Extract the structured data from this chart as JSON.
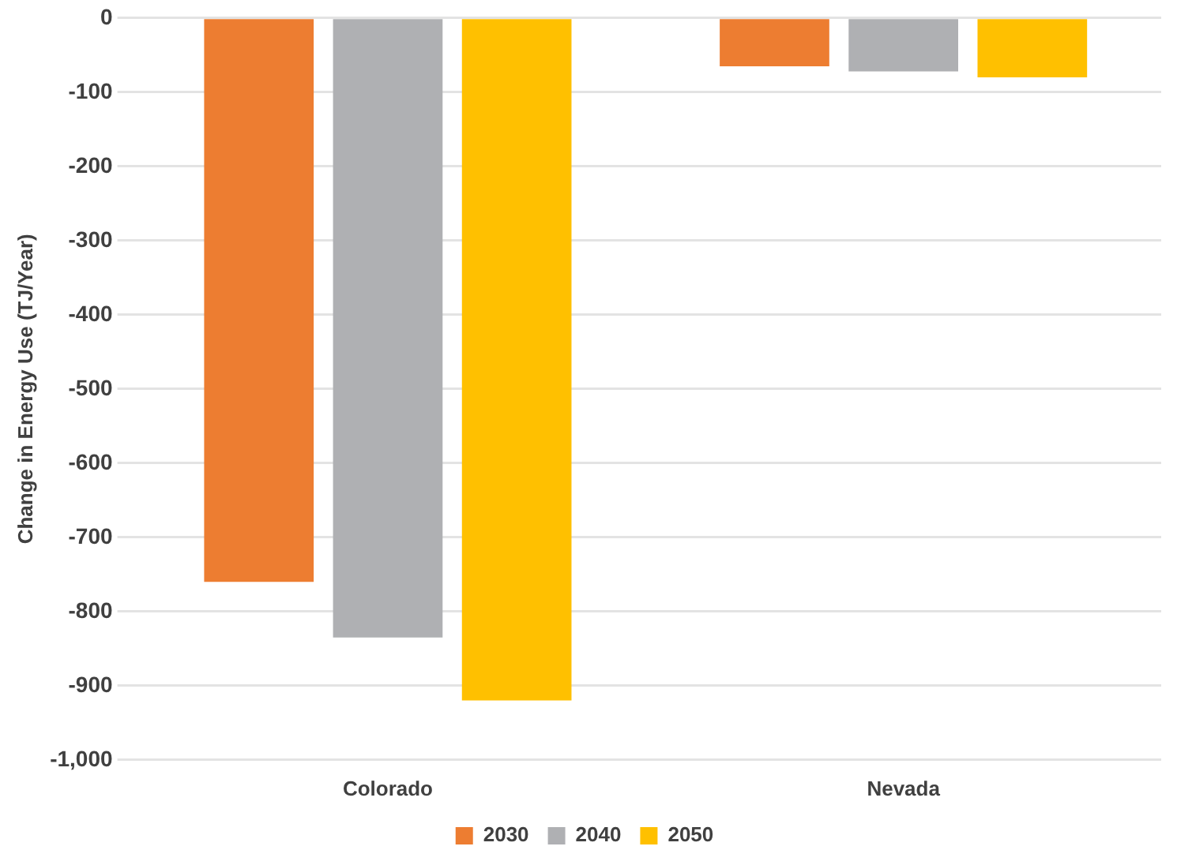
{
  "chart_data": {
    "type": "bar",
    "ylabel": "Change in Energy Use (TJ/Year)",
    "categories": [
      "Colorado",
      "Nevada"
    ],
    "series": [
      {
        "name": "2030",
        "color": "#ed7d31",
        "values": [
          -760,
          -65
        ]
      },
      {
        "name": "2040",
        "color": "#afb0b3",
        "values": [
          -835,
          -72
        ]
      },
      {
        "name": "2050",
        "color": "#ffc000",
        "values": [
          -920,
          -80
        ]
      }
    ],
    "ylim": [
      -1000,
      0
    ],
    "yticks": [
      {
        "value": -1000,
        "label": "-1,000"
      },
      -900,
      -800,
      -700,
      -600,
      -500,
      -400,
      -300,
      -200,
      -100,
      0
    ],
    "grid": "y",
    "legend": "bottom"
  }
}
